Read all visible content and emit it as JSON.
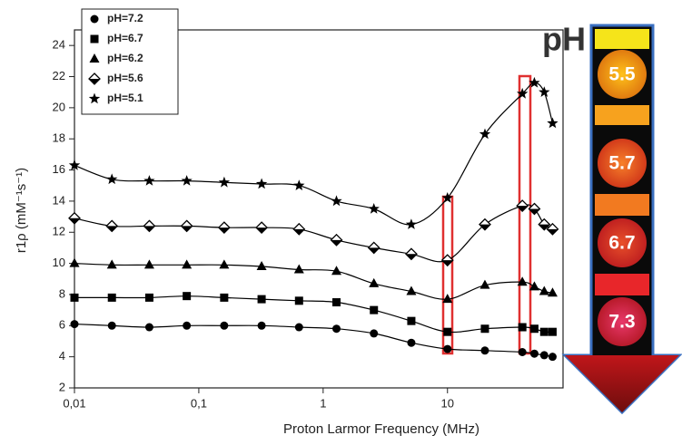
{
  "chart_data": {
    "type": "scatter",
    "x_label": "Proton Larmor Frequency (MHz)",
    "y_label": "r1ρ (mM⁻¹s⁻¹)",
    "x": [
      0.01,
      0.02,
      0.04,
      0.08,
      0.16,
      0.32,
      0.64,
      1.28,
      2.56,
      5.12,
      10,
      20,
      40,
      50,
      60,
      70
    ],
    "x_scale": "log",
    "xlim": [
      0.01,
      85
    ],
    "xticks": [
      {
        "value": 0.01,
        "label": "0,01"
      },
      {
        "value": 0.1,
        "label": "0,1"
      },
      1,
      10
    ],
    "ylim": [
      2,
      25
    ],
    "yticks": [
      2,
      4,
      6,
      8,
      10,
      12,
      14,
      16,
      18,
      20,
      22,
      24
    ],
    "legend": "upper left",
    "series": [
      {
        "name": "pH=7.2",
        "marker": "circle",
        "color": "#000000",
        "values": [
          6.1,
          6.0,
          5.9,
          6.0,
          6.0,
          6.0,
          5.9,
          5.8,
          5.5,
          4.9,
          4.5,
          4.4,
          4.3,
          4.2,
          4.1,
          4.0
        ]
      },
      {
        "name": "pH=6.7",
        "marker": "square",
        "color": "#000000",
        "values": [
          7.8,
          7.8,
          7.8,
          7.9,
          7.8,
          7.7,
          7.6,
          7.5,
          7.0,
          6.3,
          5.6,
          5.8,
          5.9,
          5.8,
          5.6,
          5.6
        ]
      },
      {
        "name": "pH=6.2",
        "marker": "triangle",
        "color": "#000000",
        "values": [
          10.0,
          9.9,
          9.9,
          9.9,
          9.9,
          9.8,
          9.6,
          9.5,
          8.7,
          8.2,
          7.7,
          8.6,
          8.8,
          8.5,
          8.2,
          8.1
        ]
      },
      {
        "name": "pH=5.6",
        "marker": "diamond",
        "color": "#000000",
        "values": [
          12.9,
          12.4,
          12.4,
          12.4,
          12.3,
          12.3,
          12.2,
          11.5,
          11.0,
          10.6,
          10.2,
          12.5,
          13.7,
          13.5,
          12.5,
          12.2
        ]
      },
      {
        "name": "pH=5.1",
        "marker": "star",
        "color": "#000000",
        "values": [
          16.3,
          15.4,
          15.3,
          15.3,
          15.2,
          15.1,
          15.0,
          14.0,
          13.5,
          12.5,
          14.2,
          18.3,
          20.9,
          21.6,
          21.0,
          19.0
        ]
      }
    ]
  },
  "panel": {
    "title": "pH",
    "labels": [
      "5.5",
      "5.7",
      "6.7",
      "7.3"
    ]
  }
}
